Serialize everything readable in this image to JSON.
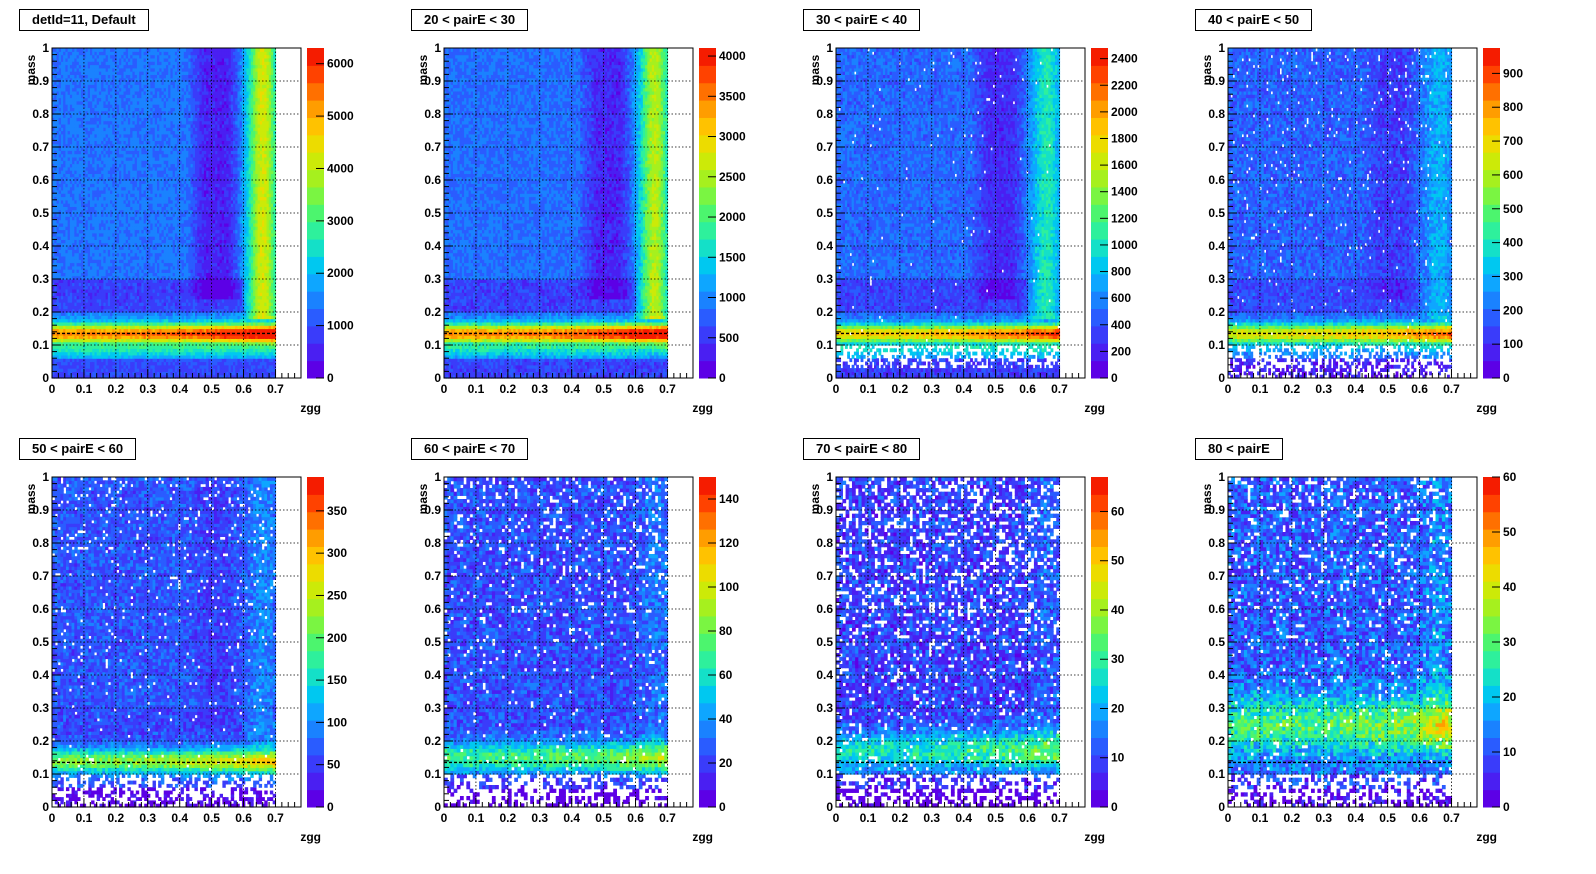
{
  "figure": {
    "colors": {
      "background": "#ffffff",
      "frame": "#000000",
      "grid": "#000000"
    },
    "colormap": [
      "#5c00e6",
      "#4a1ff2",
      "#3a3cfa",
      "#2a5cff",
      "#1a82ff",
      "#0ea6ff",
      "#00c8f0",
      "#14e0c8",
      "#2ef09c",
      "#4cf56e",
      "#7af542",
      "#a6f01e",
      "#ccea08",
      "#ecdc00",
      "#ffc200",
      "#ff9d00",
      "#ff7000",
      "#ff4200",
      "#f51c00"
    ]
  },
  "chart_data": [
    {
      "type": "heatmap",
      "title": "detId=11, Default",
      "xlabel": "zgg",
      "ylabel": "mass",
      "xlim": [
        0,
        0.78
      ],
      "ylim": [
        0,
        1
      ],
      "x_ticks": [
        "0",
        "0.1",
        "0.2",
        "0.3",
        "0.4",
        "0.5",
        "0.6",
        "0.7"
      ],
      "y_ticks": [
        "0",
        "0.1",
        "0.2",
        "0.3",
        "0.4",
        "0.5",
        "0.6",
        "0.7",
        "0.8",
        "0.9",
        "1"
      ],
      "z_ticks": [
        "0",
        "1000",
        "2000",
        "3000",
        "4000",
        "5000",
        "6000"
      ],
      "zmax": 6300,
      "x_data_max": 0.7,
      "pi0_mass_line": 0.135,
      "grid": true,
      "grid_style": "dotted",
      "features": {
        "band_center": 0.135,
        "band_width": 0.03,
        "band_peak": 0.9,
        "band_rise": 0.3,
        "low_mass_level": 0.2,
        "floor": 0.05,
        "background_level": 0.22,
        "edge_ridge": 0.45,
        "empty_fraction": 0.0,
        "noise": 0.04,
        "dark_well_depth": 0.14
      },
      "grid_bins": {
        "nx": 100,
        "ny": 100
      }
    },
    {
      "type": "heatmap",
      "title": "20 < pairE < 30",
      "xlabel": "zgg",
      "ylabel": "mass",
      "xlim": [
        0,
        0.78
      ],
      "ylim": [
        0,
        1
      ],
      "x_ticks": [
        "0",
        "0.1",
        "0.2",
        "0.3",
        "0.4",
        "0.5",
        "0.6",
        "0.7"
      ],
      "y_ticks": [
        "0",
        "0.1",
        "0.2",
        "0.3",
        "0.4",
        "0.5",
        "0.6",
        "0.7",
        "0.8",
        "0.9",
        "1"
      ],
      "z_ticks": [
        "0",
        "500",
        "1000",
        "1500",
        "2000",
        "2500",
        "3000",
        "3500",
        "4000"
      ],
      "zmax": 4100,
      "x_data_max": 0.7,
      "pi0_mass_line": 0.135,
      "grid": true,
      "grid_style": "dotted",
      "features": {
        "band_center": 0.135,
        "band_width": 0.03,
        "band_peak": 0.9,
        "band_rise": 0.3,
        "low_mass_level": 0.2,
        "floor": 0.05,
        "background_level": 0.21,
        "edge_ridge": 0.42,
        "empty_fraction": 0.0,
        "noise": 0.05,
        "dark_well_depth": 0.12
      },
      "grid_bins": {
        "nx": 100,
        "ny": 100
      }
    },
    {
      "type": "heatmap",
      "title": "30 < pairE < 40",
      "xlabel": "zgg",
      "ylabel": "mass",
      "xlim": [
        0,
        0.78
      ],
      "ylim": [
        0,
        1
      ],
      "x_ticks": [
        "0",
        "0.1",
        "0.2",
        "0.3",
        "0.4",
        "0.5",
        "0.6",
        "0.7"
      ],
      "y_ticks": [
        "0",
        "0.1",
        "0.2",
        "0.3",
        "0.4",
        "0.5",
        "0.6",
        "0.7",
        "0.8",
        "0.9",
        "1"
      ],
      "z_ticks": [
        "0",
        "200",
        "400",
        "600",
        "800",
        "1000",
        "1200",
        "1400",
        "1600",
        "1800",
        "2000",
        "2200",
        "2400"
      ],
      "zmax": 2480,
      "x_data_max": 0.7,
      "pi0_mass_line": 0.135,
      "grid": true,
      "grid_style": "dotted",
      "features": {
        "band_center": 0.135,
        "band_width": 0.028,
        "band_peak": 0.78,
        "band_rise": 0.3,
        "low_mass_level": 0.2,
        "floor": 0.02,
        "background_level": 0.2,
        "edge_ridge": 0.22,
        "empty_fraction": 0.02,
        "noise": 0.05,
        "dark_well_depth": 0.1
      },
      "grid_bins": {
        "nx": 100,
        "ny": 100
      }
    },
    {
      "type": "heatmap",
      "title": "40 < pairE < 50",
      "xlabel": "zgg",
      "ylabel": "mass",
      "xlim": [
        0,
        0.78
      ],
      "ylim": [
        0,
        1
      ],
      "x_ticks": [
        "0",
        "0.1",
        "0.2",
        "0.3",
        "0.4",
        "0.5",
        "0.6",
        "0.7"
      ],
      "y_ticks": [
        "0",
        "0.1",
        "0.2",
        "0.3",
        "0.4",
        "0.5",
        "0.6",
        "0.7",
        "0.8",
        "0.9",
        "1"
      ],
      "z_ticks": [
        "0",
        "100",
        "200",
        "300",
        "400",
        "500",
        "600",
        "700",
        "800",
        "900"
      ],
      "zmax": 975,
      "x_data_max": 0.7,
      "pi0_mass_line": 0.135,
      "grid": true,
      "grid_style": "dotted",
      "features": {
        "band_center": 0.135,
        "band_width": 0.03,
        "band_peak": 0.72,
        "band_rise": 0.3,
        "low_mass_level": 0.12,
        "floor": 0.0,
        "background_level": 0.19,
        "edge_ridge": 0.12,
        "empty_fraction": 0.05,
        "noise": 0.06,
        "dark_well_depth": 0.06
      },
      "grid_bins": {
        "nx": 100,
        "ny": 100
      }
    },
    {
      "type": "heatmap",
      "title": "50 < pairE < 60",
      "xlabel": "zgg",
      "ylabel": "mass",
      "xlim": [
        0,
        0.78
      ],
      "ylim": [
        0,
        1
      ],
      "x_ticks": [
        "0",
        "0.1",
        "0.2",
        "0.3",
        "0.4",
        "0.5",
        "0.6",
        "0.7"
      ],
      "y_ticks": [
        "0",
        "0.1",
        "0.2",
        "0.3",
        "0.4",
        "0.5",
        "0.6",
        "0.7",
        "0.8",
        "0.9",
        "1"
      ],
      "z_ticks": [
        "0",
        "50",
        "100",
        "150",
        "200",
        "250",
        "300",
        "350"
      ],
      "zmax": 390,
      "x_data_max": 0.7,
      "pi0_mass_line": 0.135,
      "grid": true,
      "grid_style": "dotted",
      "features": {
        "band_center": 0.14,
        "band_width": 0.035,
        "band_peak": 0.6,
        "band_rise": 0.35,
        "low_mass_level": 0.05,
        "floor": 0.0,
        "background_level": 0.17,
        "edge_ridge": 0.08,
        "empty_fraction": 0.1,
        "noise": 0.07,
        "dark_well_depth": 0.03
      },
      "grid_bins": {
        "nx": 80,
        "ny": 100
      }
    },
    {
      "type": "heatmap",
      "title": "60 < pairE < 70",
      "xlabel": "zgg",
      "ylabel": "mass",
      "xlim": [
        0,
        0.78
      ],
      "ylim": [
        0,
        1
      ],
      "x_ticks": [
        "0",
        "0.1",
        "0.2",
        "0.3",
        "0.4",
        "0.5",
        "0.6",
        "0.7"
      ],
      "y_ticks": [
        "0",
        "0.1",
        "0.2",
        "0.3",
        "0.4",
        "0.5",
        "0.6",
        "0.7",
        "0.8",
        "0.9",
        "1"
      ],
      "z_ticks": [
        "0",
        "20",
        "40",
        "60",
        "80",
        "100",
        "120",
        "140"
      ],
      "zmax": 150,
      "x_data_max": 0.7,
      "pi0_mass_line": 0.135,
      "grid": true,
      "grid_style": "dotted",
      "features": {
        "band_center": 0.15,
        "band_width": 0.045,
        "band_peak": 0.48,
        "band_rise": 0.35,
        "low_mass_level": 0.0,
        "floor": 0.0,
        "background_level": 0.16,
        "edge_ridge": 0.06,
        "empty_fraction": 0.15,
        "noise": 0.08,
        "dark_well_depth": 0.0
      },
      "grid_bins": {
        "nx": 70,
        "ny": 90
      }
    },
    {
      "type": "heatmap",
      "title": "70 < pairE < 80",
      "xlabel": "zgg",
      "ylabel": "mass",
      "xlim": [
        0,
        0.78
      ],
      "ylim": [
        0,
        1
      ],
      "x_ticks": [
        "0",
        "0.1",
        "0.2",
        "0.3",
        "0.4",
        "0.5",
        "0.6",
        "0.7"
      ],
      "y_ticks": [
        "0",
        "0.1",
        "0.2",
        "0.3",
        "0.4",
        "0.5",
        "0.6",
        "0.7",
        "0.8",
        "0.9",
        "1"
      ],
      "z_ticks": [
        "0",
        "10",
        "20",
        "30",
        "40",
        "50",
        "60"
      ],
      "zmax": 67,
      "x_data_max": 0.7,
      "pi0_mass_line": 0.135,
      "grid": true,
      "grid_style": "dotted",
      "features": {
        "band_center": 0.17,
        "band_width": 0.06,
        "band_peak": 0.4,
        "band_rise": 0.35,
        "low_mass_level": 0.0,
        "floor": 0.0,
        "background_level": 0.14,
        "edge_ridge": 0.05,
        "empty_fraction": 0.35,
        "noise": 0.1,
        "dark_well_depth": 0.0
      },
      "grid_bins": {
        "nx": 70,
        "ny": 90
      }
    },
    {
      "type": "heatmap",
      "title": "80 < pairE",
      "xlabel": "zgg",
      "ylabel": "mass",
      "xlim": [
        0,
        0.78
      ],
      "ylim": [
        0,
        1
      ],
      "x_ticks": [
        "0",
        "0.1",
        "0.2",
        "0.3",
        "0.4",
        "0.5",
        "0.6",
        "0.7"
      ],
      "y_ticks": [
        "0",
        "0.1",
        "0.2",
        "0.3",
        "0.4",
        "0.5",
        "0.6",
        "0.7",
        "0.8",
        "0.9",
        "1"
      ],
      "z_ticks": [
        "0",
        "10",
        "20",
        "30",
        "40",
        "50",
        "60"
      ],
      "zmax": 60,
      "x_data_max": 0.7,
      "pi0_mass_line": 0.135,
      "grid": true,
      "grid_style": "dotted",
      "features": {
        "band_center": 0.25,
        "band_width": 0.09,
        "band_peak": 0.45,
        "band_rise": 0.35,
        "low_mass_level": 0.0,
        "floor": 0.0,
        "background_level": 0.18,
        "edge_ridge": 0.08,
        "empty_fraction": 0.18,
        "noise": 0.12,
        "dark_well_depth": 0.0
      },
      "grid_bins": {
        "nx": 70,
        "ny": 90
      }
    }
  ]
}
